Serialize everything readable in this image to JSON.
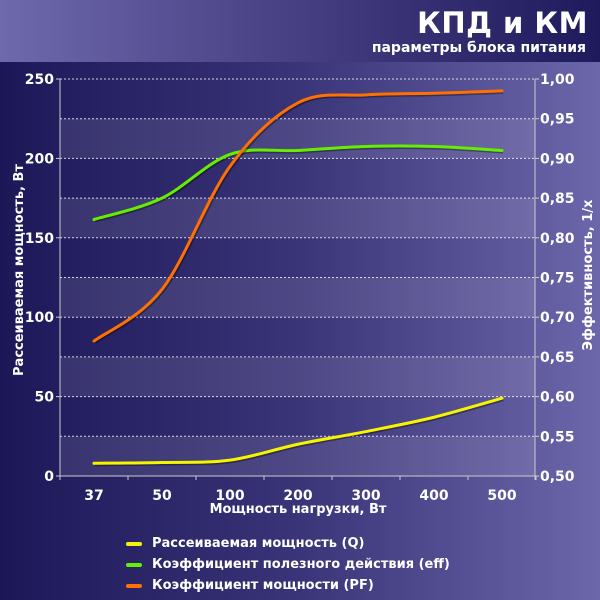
{
  "header": {
    "title": "КПД и КМ",
    "subtitle": "параметры блока питания"
  },
  "colors": {
    "Q": "#f5f500",
    "eff": "#66ee00",
    "PF": "#ff7000"
  },
  "chart_data": {
    "type": "line",
    "xlabel": "Мощность нагрузки, Вт",
    "ylabel_left": "Рассеиваемая мощность, Вт",
    "ylabel_right": "Эффективность, 1/x",
    "categories": [
      "37",
      "50",
      "100",
      "200",
      "300",
      "400",
      "500"
    ],
    "ylim_left": [
      0,
      250
    ],
    "ylim_right": [
      0.5,
      1.0
    ],
    "yticks_left": [
      "0",
      "50",
      "100",
      "150",
      "200",
      "250"
    ],
    "yticks_right": [
      "0,50",
      "0,55",
      "0,60",
      "0,65",
      "0,70",
      "0,75",
      "0,80",
      "0,85",
      "0,90",
      "0,95",
      "1,00"
    ],
    "grid": true,
    "legend_placement": "bottom",
    "series": [
      {
        "name": "Рассеиваемая мощность (Q)",
        "axis": "left",
        "color": "#f5f500",
        "values": [
          8,
          8.5,
          10,
          20,
          28,
          37,
          49
        ]
      },
      {
        "name": "Коэффициент полезного действия (eff)",
        "axis": "right",
        "color": "#66ee00",
        "values": [
          0.823,
          0.85,
          0.905,
          0.91,
          0.915,
          0.915,
          0.91
        ]
      },
      {
        "name": "Коэффициент мощности (PF)",
        "axis": "right",
        "color": "#ff7000",
        "values": [
          0.67,
          0.735,
          0.89,
          0.97,
          0.98,
          0.982,
          0.985
        ]
      }
    ]
  }
}
